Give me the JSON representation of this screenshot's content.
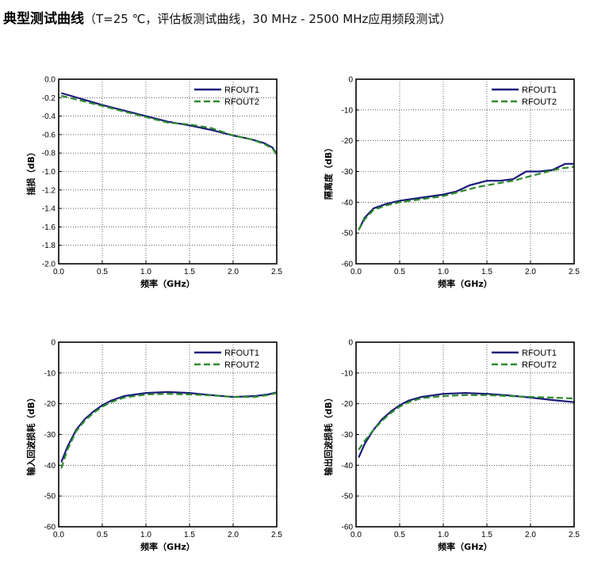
{
  "page": {
    "title_main": "典型测试曲线",
    "title_sub": "（T=25 ℃，评估板测试曲线，30 MHz - 2500 MHz应用频段测试）"
  },
  "chart_data": [
    {
      "type": "line",
      "xlabel": "频率（GHz）",
      "ylabel": "插损（dB）",
      "xlim": [
        0.0,
        2.5
      ],
      "ylim": [
        -2.0,
        0.0
      ],
      "xticks": [
        "0.0",
        "0.5",
        "1.0",
        "1.5",
        "2.0",
        "2.5"
      ],
      "yticks": [
        "0.0",
        "-0.2",
        "-0.4",
        "-0.6",
        "-0.8",
        "-1.0",
        "-1.2",
        "-1.4",
        "-1.6",
        "-1.8",
        "-2.0"
      ],
      "grid": true,
      "legend": "top-right",
      "series": [
        {
          "name": "RFOUT1",
          "color": "#1a1a7a",
          "style": "solid",
          "x": [
            0.03,
            0.25,
            0.5,
            0.75,
            1.0,
            1.25,
            1.5,
            1.75,
            2.0,
            2.2,
            2.35,
            2.45,
            2.5
          ],
          "y": [
            -0.15,
            -0.21,
            -0.28,
            -0.34,
            -0.4,
            -0.46,
            -0.5,
            -0.55,
            -0.61,
            -0.65,
            -0.69,
            -0.74,
            -0.81
          ]
        },
        {
          "name": "RFOUT2",
          "color": "#2e8b2e",
          "style": "dashed",
          "x": [
            0.03,
            0.25,
            0.5,
            0.75,
            1.0,
            1.25,
            1.5,
            1.75,
            2.0,
            2.2,
            2.35,
            2.45,
            2.5
          ],
          "y": [
            -0.18,
            -0.23,
            -0.29,
            -0.35,
            -0.41,
            -0.47,
            -0.49,
            -0.53,
            -0.61,
            -0.65,
            -0.7,
            -0.75,
            -0.82
          ]
        }
      ]
    },
    {
      "type": "line",
      "xlabel": "频率（GHz）",
      "ylabel": "隔离度（dB）",
      "xlim": [
        0.0,
        2.5
      ],
      "ylim": [
        -60,
        0
      ],
      "xticks": [
        "0.0",
        "0.5",
        "1.0",
        "1.5",
        "2.0",
        "2.5"
      ],
      "yticks": [
        "0",
        "-10",
        "-20",
        "-30",
        "-40",
        "-50",
        "-60"
      ],
      "grid": true,
      "legend": "top-right",
      "series": [
        {
          "name": "RFOUT1",
          "color": "#1a1a7a",
          "style": "solid",
          "x": [
            0.03,
            0.1,
            0.2,
            0.35,
            0.5,
            0.75,
            1.0,
            1.15,
            1.3,
            1.5,
            1.65,
            1.8,
            1.95,
            2.1,
            2.25,
            2.4,
            2.5
          ],
          "y": [
            -49,
            -45,
            -42,
            -40.5,
            -39.5,
            -38.5,
            -37.5,
            -36.5,
            -34.5,
            -33,
            -33,
            -32.5,
            -30,
            -30,
            -29.5,
            -27.5,
            -27.5
          ]
        },
        {
          "name": "RFOUT2",
          "color": "#2e8b2e",
          "style": "dashed",
          "x": [
            0.03,
            0.1,
            0.2,
            0.35,
            0.5,
            0.75,
            1.0,
            1.2,
            1.4,
            1.6,
            1.8,
            2.0,
            2.2,
            2.35,
            2.5
          ],
          "y": [
            -49,
            -45.5,
            -42.5,
            -41,
            -40,
            -39,
            -38,
            -36.5,
            -35,
            -34,
            -33,
            -31.5,
            -30,
            -29,
            -28.5
          ]
        }
      ]
    },
    {
      "type": "line",
      "xlabel": "频率（GHz）",
      "ylabel": "输入回波损耗（dB）",
      "xlim": [
        0.0,
        2.5
      ],
      "ylim": [
        -60,
        0
      ],
      "xticks": [
        "0.0",
        "0.5",
        "1.0",
        "1.5",
        "2.0",
        "2.5"
      ],
      "yticks": [
        "0",
        "-10",
        "-20",
        "-30",
        "-40",
        "-50",
        "-60"
      ],
      "grid": true,
      "legend": "top-right",
      "series": [
        {
          "name": "RFOUT1",
          "color": "#1a1a7a",
          "style": "solid",
          "x": [
            0.03,
            0.1,
            0.2,
            0.3,
            0.4,
            0.5,
            0.6,
            0.75,
            1.0,
            1.25,
            1.5,
            1.75,
            2.0,
            2.25,
            2.4,
            2.5
          ],
          "y": [
            -39,
            -34,
            -28.5,
            -25,
            -22.5,
            -20.5,
            -19,
            -17.5,
            -16.5,
            -16.2,
            -16.5,
            -17.2,
            -17.8,
            -17.5,
            -17,
            -16.3
          ]
        },
        {
          "name": "RFOUT2",
          "color": "#2e8b2e",
          "style": "dashed",
          "x": [
            0.03,
            0.1,
            0.2,
            0.3,
            0.4,
            0.5,
            0.6,
            0.75,
            1.0,
            1.25,
            1.5,
            1.75,
            2.0,
            2.25,
            2.4,
            2.5
          ],
          "y": [
            -41,
            -35,
            -29,
            -25.5,
            -23,
            -21,
            -19.5,
            -18,
            -17,
            -16.8,
            -17,
            -17.3,
            -17.8,
            -17.8,
            -17.2,
            -16.5
          ]
        }
      ]
    },
    {
      "type": "line",
      "xlabel": "频率（GHz）",
      "ylabel": "输出回波损耗（dB）",
      "xlim": [
        0.0,
        2.5
      ],
      "ylim": [
        -60,
        0
      ],
      "xticks": [
        "0.0",
        "0.5",
        "1.0",
        "1.5",
        "2.0",
        "2.5"
      ],
      "yticks": [
        "0",
        "-10",
        "-20",
        "-30",
        "-40",
        "-50",
        "-60"
      ],
      "grid": true,
      "legend": "top-right",
      "series": [
        {
          "name": "RFOUT1",
          "color": "#1a1a7a",
          "style": "solid",
          "x": [
            0.03,
            0.1,
            0.2,
            0.3,
            0.4,
            0.5,
            0.6,
            0.75,
            1.0,
            1.25,
            1.5,
            1.75,
            2.0,
            2.25,
            2.5
          ],
          "y": [
            -37.5,
            -33,
            -28.5,
            -25,
            -22.5,
            -20.5,
            -19,
            -17.8,
            -16.8,
            -16.5,
            -16.8,
            -17.3,
            -18,
            -18.8,
            -19.5
          ]
        },
        {
          "name": "RFOUT2",
          "color": "#2e8b2e",
          "style": "dashed",
          "x": [
            0.03,
            0.1,
            0.2,
            0.3,
            0.4,
            0.5,
            0.6,
            0.75,
            1.0,
            1.25,
            1.5,
            1.75,
            2.0,
            2.25,
            2.5
          ],
          "y": [
            -35,
            -32,
            -28.5,
            -25.5,
            -23,
            -21,
            -19.5,
            -18.2,
            -17.5,
            -17.2,
            -17.2,
            -17.5,
            -17.8,
            -18,
            -18.3
          ]
        }
      ]
    }
  ]
}
